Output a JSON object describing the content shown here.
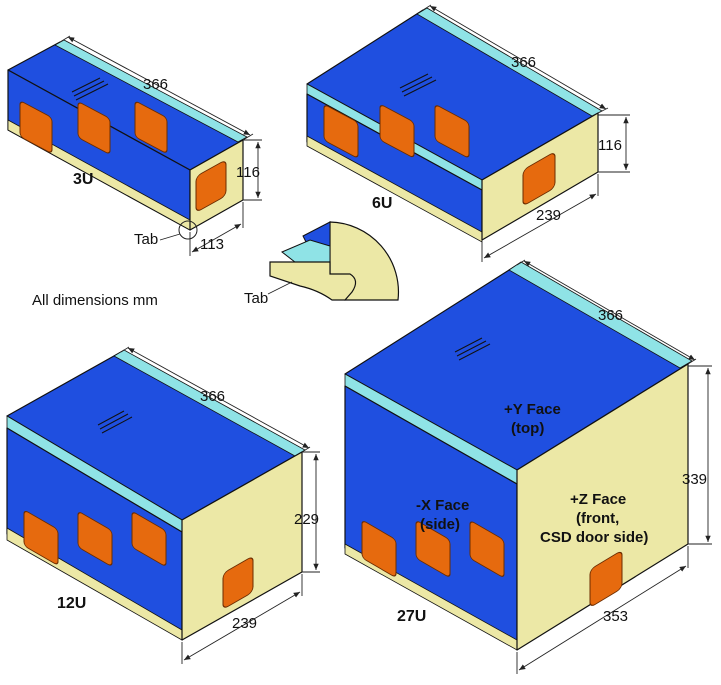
{
  "colors": {
    "blue": "#1f4fe0",
    "stripe": "#8fe3e6",
    "cream": "#ece8a6",
    "orange": "#e66a0e",
    "orange_edge": "#6b2c00"
  },
  "note": "All dimensions mm",
  "tab_label_3u": "Tab",
  "tab_label_detail": "Tab",
  "units": {
    "u3": {
      "label": "3U",
      "length": "366",
      "height": "116",
      "width": "113"
    },
    "u6": {
      "label": "6U",
      "length": "366",
      "height": "116",
      "width": "239"
    },
    "u12": {
      "label": "12U",
      "length": "366",
      "height": "229",
      "width": "239"
    },
    "u27": {
      "label": "27U",
      "length": "366",
      "height": "339",
      "width": "353"
    }
  },
  "faces": {
    "top_line1": "+Y Face",
    "top_line2": "(top)",
    "side_line1": "-X Face",
    "side_line2": "(side)",
    "front_line1": "+Z Face",
    "front_line2": "(front,",
    "front_line3": "CSD door side)"
  }
}
